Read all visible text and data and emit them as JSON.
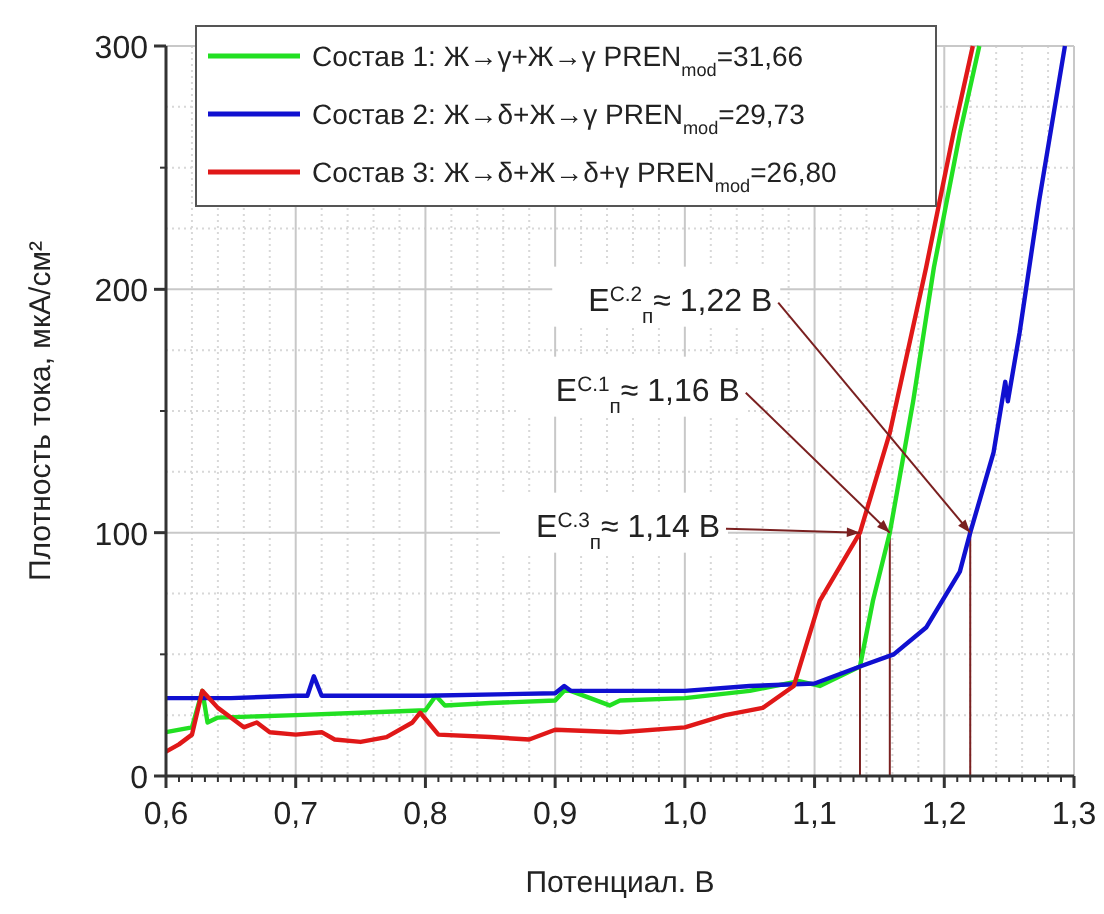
{
  "chart_data": {
    "type": "line",
    "xlabel": "Потенциал. В",
    "ylabel": "Плотность тока, мкА/см²",
    "xlim": [
      0.6,
      1.3
    ],
    "ylim": [
      0,
      300
    ],
    "xticks": [
      {
        "value": 0.6,
        "label": "0,6"
      },
      {
        "value": 0.7,
        "label": "0,7"
      },
      {
        "value": 0.8,
        "label": "0,8"
      },
      {
        "value": 0.9,
        "label": "0,9"
      },
      {
        "value": 1.0,
        "label": "1,0"
      },
      {
        "value": 1.1,
        "label": "1,1"
      },
      {
        "value": 1.2,
        "label": "1,2"
      },
      {
        "value": 1.3,
        "label": "1,3"
      }
    ],
    "yticks": [
      0,
      100,
      200,
      300
    ],
    "grid": true,
    "legend": "top left",
    "line_style": "solid",
    "marker": "none",
    "series": [
      {
        "name": "Состав 1: Ж→γ+Ж→γ PREN$_{mod}$=31,66",
        "color": "#22e022",
        "x": [
          0.6,
          0.62,
          0.628,
          0.632,
          0.64,
          0.7,
          0.75,
          0.8,
          0.808,
          0.815,
          0.85,
          0.9,
          0.907,
          0.912,
          0.942,
          0.95,
          1.0,
          1.05,
          1.088,
          1.104,
          1.135,
          1.145,
          1.158,
          1.176,
          1.192,
          1.212,
          1.227
        ],
        "values": [
          18,
          20,
          35,
          22,
          24,
          25,
          26,
          27,
          33,
          29,
          30,
          31,
          35,
          35,
          29,
          31,
          32,
          35,
          39,
          37,
          45,
          72,
          100,
          154,
          209,
          264,
          300
        ]
      },
      {
        "name": "Состав 2: Ж→δ+Ж→γ PREN$_{mod}$=29,73",
        "color": "#1010d0",
        "x": [
          0.6,
          0.65,
          0.7,
          0.709,
          0.714,
          0.72,
          0.8,
          0.9,
          0.907,
          0.912,
          0.92,
          1.0,
          1.05,
          1.1,
          1.135,
          1.161,
          1.186,
          1.212,
          1.22,
          1.238,
          1.247,
          1.249,
          1.258,
          1.273,
          1.293
        ],
        "values": [
          32,
          32,
          33,
          33,
          41,
          33,
          33,
          34,
          37,
          35,
          35,
          35,
          37,
          38,
          45,
          50,
          61,
          84,
          100,
          133,
          162,
          154,
          182,
          236,
          300
        ]
      },
      {
        "name": "Состав 3: Ж→δ+Ж→δ+γ PREN$_{mod}$=26,80",
        "color": "#e01818",
        "x": [
          0.6,
          0.61,
          0.62,
          0.628,
          0.64,
          0.65,
          0.66,
          0.67,
          0.68,
          0.7,
          0.72,
          0.73,
          0.75,
          0.77,
          0.79,
          0.796,
          0.81,
          0.85,
          0.88,
          0.9,
          0.95,
          1.0,
          1.031,
          1.06,
          1.084,
          1.104,
          1.135,
          1.158,
          1.186,
          1.207,
          1.222
        ],
        "values": [
          10,
          13,
          17,
          35,
          28,
          24,
          20,
          22,
          18,
          17,
          18,
          15,
          14,
          16,
          22,
          26,
          17,
          16,
          15,
          19,
          18,
          20,
          25,
          28,
          37,
          72,
          100,
          141,
          209,
          264,
          300
        ]
      }
    ],
    "annotations": [
      {
        "text": "E$^{C.2}$$_{п}$≈ 1,22 В",
        "x": 1.22,
        "y": 100
      },
      {
        "text": "E$^{C.1}$$_{п}$≈ 1,16 В",
        "x": 1.158,
        "y": 100
      },
      {
        "text": "E$^{C.3}$$_{п}$≈ 1,14 В",
        "x": 1.135,
        "y": 100
      }
    ]
  }
}
